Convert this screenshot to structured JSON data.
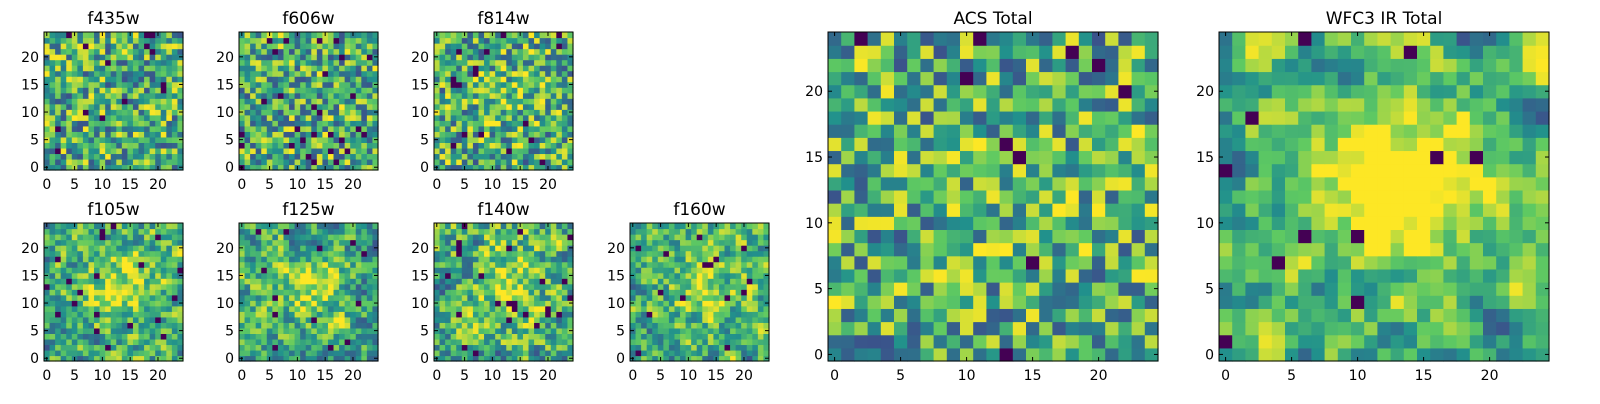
{
  "figure": {
    "background": "#ffffff"
  },
  "colormap": {
    "name": "viridis",
    "stops": [
      "#440154",
      "#3b528b",
      "#21918c",
      "#5ec962",
      "#fde725"
    ]
  },
  "chart_data": [
    {
      "type": "heatmap",
      "title": "f435w",
      "grid_size": 25,
      "value_range": [
        0,
        1
      ],
      "x_ticks": [
        0,
        5,
        10,
        15,
        20
      ],
      "y_ticks": [
        0,
        5,
        10,
        15,
        20
      ],
      "pattern": {
        "seed": 11,
        "smooth": 0,
        "center_peak": 0.0,
        "lowest_share": 0.03
      }
    },
    {
      "type": "heatmap",
      "title": "f606w",
      "grid_size": 25,
      "value_range": [
        0,
        1
      ],
      "x_ticks": [
        0,
        5,
        10,
        15,
        20
      ],
      "y_ticks": [
        0,
        5,
        10,
        15,
        20
      ],
      "pattern": {
        "seed": 23,
        "smooth": 0,
        "center_peak": 0.0,
        "lowest_share": 0.04
      }
    },
    {
      "type": "heatmap",
      "title": "f814w",
      "grid_size": 25,
      "value_range": [
        0,
        1
      ],
      "x_ticks": [
        0,
        5,
        10,
        15,
        20
      ],
      "y_ticks": [
        0,
        5,
        10,
        15,
        20
      ],
      "pattern": {
        "seed": 37,
        "smooth": 0,
        "center_peak": 0.12,
        "lowest_share": 0.03
      }
    },
    {
      "type": "heatmap",
      "title": "f105w",
      "grid_size": 25,
      "value_range": [
        0,
        1
      ],
      "x_ticks": [
        0,
        5,
        10,
        15,
        20
      ],
      "y_ticks": [
        0,
        5,
        10,
        15,
        20
      ],
      "pattern": {
        "seed": 41,
        "smooth": 1,
        "center_peak": 0.35,
        "lowest_share": 0.03
      }
    },
    {
      "type": "heatmap",
      "title": "f125w",
      "grid_size": 25,
      "value_range": [
        0,
        1
      ],
      "x_ticks": [
        0,
        5,
        10,
        15,
        20
      ],
      "y_ticks": [
        0,
        5,
        10,
        15,
        20
      ],
      "pattern": {
        "seed": 53,
        "smooth": 1,
        "center_peak": 0.25,
        "lowest_share": 0.03
      }
    },
    {
      "type": "heatmap",
      "title": "f140w",
      "grid_size": 25,
      "value_range": [
        0,
        1
      ],
      "x_ticks": [
        0,
        5,
        10,
        15,
        20
      ],
      "y_ticks": [
        0,
        5,
        10,
        15,
        20
      ],
      "pattern": {
        "seed": 67,
        "smooth": 1,
        "center_peak": 0.25,
        "lowest_share": 0.03
      }
    },
    {
      "type": "heatmap",
      "title": "f160w",
      "grid_size": 25,
      "value_range": [
        0,
        1
      ],
      "x_ticks": [
        0,
        5,
        10,
        15,
        20
      ],
      "y_ticks": [
        0,
        5,
        10,
        15,
        20
      ],
      "pattern": {
        "seed": 79,
        "smooth": 1,
        "center_peak": 0.25,
        "lowest_share": 0.03
      }
    },
    {
      "type": "heatmap",
      "title": "ACS Total",
      "grid_size": 25,
      "value_range": [
        0,
        1
      ],
      "x_ticks": [
        0,
        5,
        10,
        15,
        20
      ],
      "y_ticks": [
        0,
        5,
        10,
        15,
        20
      ],
      "pattern": {
        "seed": 97,
        "smooth": 0,
        "center_peak": 0.05,
        "lowest_share": 0.02
      }
    },
    {
      "type": "heatmap",
      "title": "WFC3 IR Total",
      "grid_size": 25,
      "value_range": [
        0,
        1
      ],
      "x_ticks": [
        0,
        5,
        10,
        15,
        20
      ],
      "y_ticks": [
        0,
        5,
        10,
        15,
        20
      ],
      "pattern": {
        "seed": 113,
        "smooth": 2,
        "center_peak": 0.55,
        "lowest_share": 0.02
      }
    }
  ]
}
